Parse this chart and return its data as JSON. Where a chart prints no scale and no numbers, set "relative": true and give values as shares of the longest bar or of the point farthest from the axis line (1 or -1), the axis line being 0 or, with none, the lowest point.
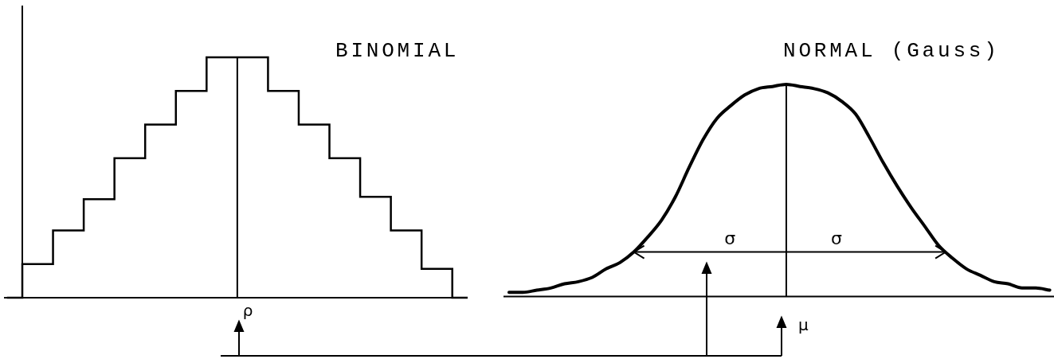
{
  "chart_data": [
    {
      "type": "step",
      "title": "BINOMIAL",
      "relative": true,
      "categories": [
        null,
        null,
        null,
        null,
        null,
        null,
        null,
        null,
        null,
        null,
        null,
        null,
        null,
        null,
        null,
        null
      ],
      "values": [
        0,
        0.14,
        0.28,
        0.41,
        0.58,
        0.72,
        0.86,
        1,
        1,
        0.86,
        0.72,
        0.58,
        0.42,
        0.28,
        0.12,
        0
      ],
      "color": "#000000",
      "annotations": [
        "ρ"
      ]
    },
    {
      "type": "line",
      "title": "NORMAL (Gauss)",
      "relative": true,
      "marker": "none",
      "categories": [
        null,
        null,
        null,
        null,
        null,
        null,
        null,
        null,
        null,
        null,
        null,
        null,
        null,
        null,
        null,
        null,
        null,
        null,
        null,
        null,
        null,
        null,
        null,
        null,
        null,
        null,
        null,
        null,
        null,
        null,
        null,
        null,
        null,
        null,
        null,
        null,
        null,
        null,
        null,
        null
      ],
      "values": [
        0.02,
        0.02,
        0.03,
        0.04,
        0.06,
        0.07,
        0.09,
        0.13,
        0.16,
        0.21,
        0.28,
        0.36,
        0.47,
        0.61,
        0.74,
        0.84,
        0.9,
        0.95,
        0.98,
        0.99,
        1,
        0.99,
        0.98,
        0.96,
        0.92,
        0.86,
        0.75,
        0.63,
        0.52,
        0.42,
        0.33,
        0.24,
        0.18,
        0.13,
        0.1,
        0.07,
        0.06,
        0.04,
        0.04,
        0.03
      ],
      "color": "#000000",
      "ref_lines": [
        {
          "axis": "y",
          "value": 0.21,
          "label": "σ",
          "color": "#000000"
        }
      ],
      "annotations": [
        "σ",
        "μ"
      ]
    }
  ]
}
